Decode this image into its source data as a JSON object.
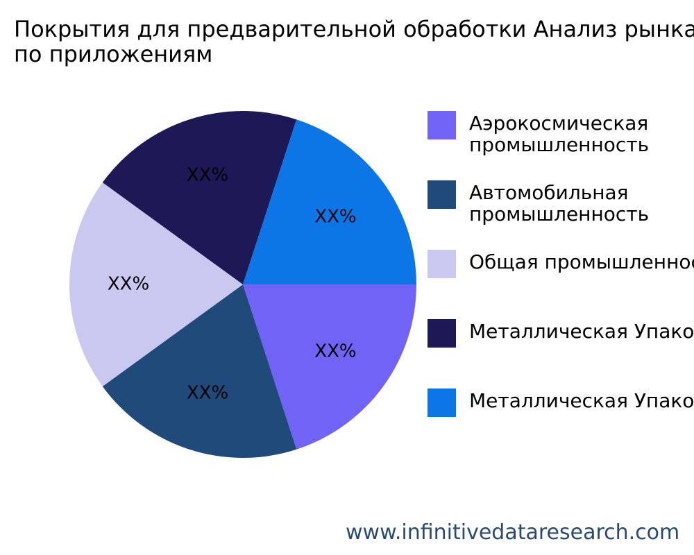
{
  "chart_data": {
    "type": "pie",
    "title": "Покрытия для предварительной обработки Анализ рынка по приложениям",
    "title_lines": [
      "Покрытия для предварительной обработки Анализ рынка",
      "по приложениям"
    ],
    "slices": [
      {
        "name": "Аэрокосмическая промышленность",
        "name_lines": [
          "Аэрокосмическая",
          "промышленность"
        ],
        "value": 20,
        "label": "XX%",
        "color": "#7163f5"
      },
      {
        "name": "Автомобильная промышленность",
        "name_lines": [
          "Автомобильная",
          "промышленность"
        ],
        "value": 20,
        "label": "XX%",
        "color": "#1f4a7a"
      },
      {
        "name": "Общая промышленность",
        "name_lines": [
          "Общая промышленность"
        ],
        "value": 20,
        "label": "XX%",
        "color": "#c9c8f0"
      },
      {
        "name": "Металлическая Упаковка",
        "name_lines": [
          "Металлическая Упаковка"
        ],
        "value": 20,
        "label": "XX%",
        "color": "#1d1856"
      },
      {
        "name": "Металлическая Упаковка",
        "name_lines": [
          "Металлическая Упаковка"
        ],
        "value": 20,
        "label": "XX%",
        "color": "#0d76e6"
      }
    ],
    "start_angle_deg": 0,
    "direction": "clockwise",
    "legend_position": "right"
  },
  "source": {
    "url_text": "www.infinitivedataresearch.com",
    "color": "#2a4a72"
  }
}
